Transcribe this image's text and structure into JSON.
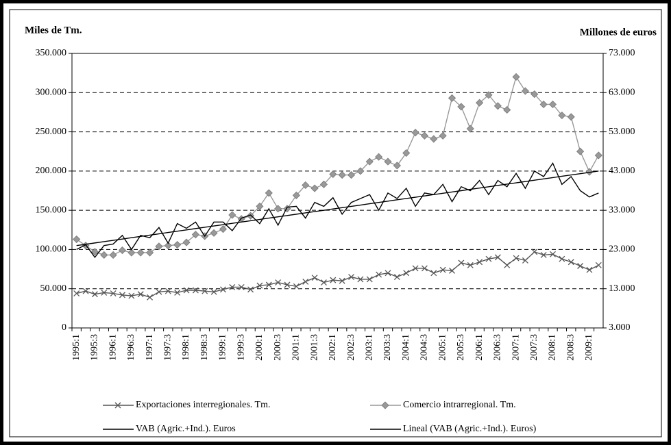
{
  "chart_data": {
    "type": "line",
    "y_label": "Miles de Tm.",
    "y2_label": "Millones de euros",
    "categories": [
      "1995:1",
      null,
      "1995:3",
      null,
      "1996:1",
      null,
      "1996:3",
      null,
      "1997:1",
      null,
      "1997:3",
      null,
      "1998:1",
      null,
      "1998:3",
      null,
      "1999:1",
      null,
      "1999:3",
      null,
      "2000:1",
      null,
      "2000:3",
      null,
      "2001:1",
      null,
      "2001:3",
      null,
      "2002:1",
      null,
      "2002:3",
      null,
      "2003:1",
      null,
      "2003:3",
      null,
      "2004:1",
      null,
      "2004:3",
      null,
      "2005:1",
      null,
      "2005:3",
      null,
      "2006:1",
      null,
      "2006:3",
      null,
      "2007:1",
      null,
      "2007:3",
      null,
      "2008:1",
      null,
      "2008:3",
      null,
      "2009:1",
      null
    ],
    "ylim": [
      0,
      350000
    ],
    "yticks": [
      0,
      {
        "value": 50000,
        "label": "50.000"
      },
      {
        "value": 100000,
        "label": "100.000"
      },
      {
        "value": 150000,
        "label": "150.000"
      },
      {
        "value": 200000,
        "label": "200.000"
      },
      {
        "value": 250000,
        "label": "250.000"
      },
      {
        "value": 300000,
        "label": "300.000"
      },
      {
        "value": 350000,
        "label": "350.000"
      }
    ],
    "y2lim": [
      3000,
      73000
    ],
    "y2ticks": [
      {
        "value": 3000,
        "label": "3.000"
      },
      {
        "value": 13000,
        "label": "13.000"
      },
      {
        "value": 23000,
        "label": "23.000"
      },
      {
        "value": 33000,
        "label": "33.000"
      },
      {
        "value": 43000,
        "label": "43.000"
      },
      {
        "value": 53000,
        "label": "53.000"
      },
      {
        "value": 63000,
        "label": "63.000"
      },
      {
        "value": 73000,
        "label": "73.000"
      }
    ],
    "grid": true,
    "series": [
      {
        "name": "Exportaciones interregionales. Tm.",
        "color": "#555555",
        "marker": "x",
        "values": [
          44000,
          47000,
          43000,
          45000,
          44000,
          42000,
          41000,
          43000,
          39000,
          46000,
          47000,
          45000,
          48000,
          48000,
          47000,
          46000,
          49000,
          52000,
          52000,
          49000,
          54000,
          55000,
          58000,
          55000,
          53000,
          59000,
          64000,
          58000,
          61000,
          60000,
          65000,
          62000,
          62000,
          68000,
          70000,
          65000,
          70000,
          76000,
          76000,
          70000,
          74000,
          73000,
          83000,
          80000,
          84000,
          88000,
          90000,
          80000,
          89000,
          86000,
          97000,
          93000,
          94000,
          88000,
          84000,
          79000,
          74000,
          80000
        ]
      },
      {
        "name": "Comercio intrarregional. Tm.",
        "color": "#999999",
        "marker": "diamond",
        "values": [
          113000,
          105000,
          97000,
          93000,
          93000,
          99000,
          96000,
          96000,
          96000,
          104000,
          105000,
          106000,
          109000,
          119000,
          117000,
          121000,
          126000,
          144000,
          139000,
          143000,
          155000,
          172000,
          152000,
          152000,
          169000,
          182000,
          178000,
          183000,
          196000,
          195000,
          195000,
          200000,
          212000,
          218000,
          212000,
          207000,
          223000,
          249000,
          245000,
          241000,
          245000,
          293000,
          282000,
          254000,
          287000,
          297000,
          283000,
          278000,
          320000,
          302000,
          298000,
          285000,
          285000,
          271000,
          269000,
          225000,
          199000,
          220000
        ]
      },
      {
        "name": "VAB (Agric.+Ind.). Euros",
        "color": "#000000",
        "axis": "y2",
        "values": [
          23000,
          24200,
          21000,
          24000,
          24400,
          26600,
          23000,
          26600,
          26000,
          28600,
          24600,
          29600,
          28400,
          30000,
          26400,
          30000,
          30000,
          27800,
          31000,
          31800,
          29600,
          33400,
          29200,
          33800,
          34000,
          31000,
          35000,
          34000,
          36200,
          32000,
          35000,
          36000,
          37000,
          33000,
          37400,
          36000,
          38600,
          34000,
          37400,
          37000,
          39600,
          35200,
          39000,
          38000,
          40600,
          37000,
          40600,
          39000,
          42400,
          38600,
          43000,
          41600,
          45000,
          39600,
          41600,
          38000,
          36400,
          37400
        ]
      },
      {
        "name": "Lineal (VAB (Agric.+Ind.). Euros)",
        "color": "#000000",
        "axis": "y2",
        "values": [
          24000,
          24333,
          24667,
          25000,
          25333,
          25667,
          26000,
          26333,
          26667,
          27000,
          27333,
          27667,
          28000,
          28333,
          28667,
          29000,
          29333,
          29667,
          30000,
          30333,
          30667,
          31000,
          31333,
          31667,
          32000,
          32333,
          32667,
          33000,
          33333,
          33667,
          34000,
          34333,
          34667,
          35000,
          35333,
          35667,
          36000,
          36333,
          36667,
          37000,
          37333,
          37667,
          38000,
          38333,
          38667,
          39000,
          39333,
          39667,
          40000,
          40333,
          40667,
          41000,
          41333,
          41667,
          42000,
          42333,
          42667,
          43000
        ]
      }
    ]
  }
}
